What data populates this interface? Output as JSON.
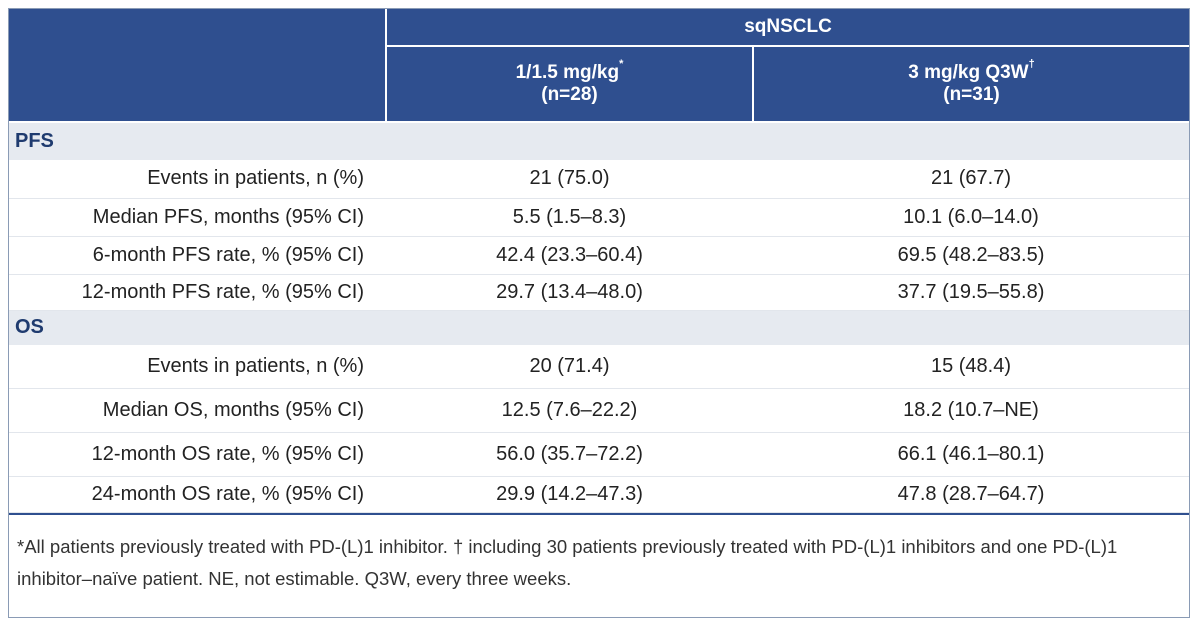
{
  "header": {
    "group": "sqNSCLC",
    "columns": [
      {
        "label": "1/1.5 mg/kg",
        "mark": "*",
        "n": "(n=28)"
      },
      {
        "label": "3 mg/kg Q3W",
        "mark": "†",
        "n": "(n=31)"
      }
    ]
  },
  "sections": [
    {
      "title": "PFS",
      "rows": [
        [
          "Events in patients, n (%)",
          "21 (75.0)",
          "21 (67.7)"
        ],
        [
          "Median PFS, months (95% CI)",
          "5.5 (1.5–8.3)",
          "10.1 (6.0–14.0)"
        ],
        [
          "6-month PFS rate, % (95% CI)",
          "42.4 (23.3–60.4)",
          "69.5 (48.2–83.5)"
        ],
        [
          "12-month PFS rate, % (95% CI)",
          "29.7 (13.4–48.0)",
          "37.7 (19.5–55.8)"
        ]
      ]
    },
    {
      "title": "OS",
      "rows": [
        [
          "Events in patients, n (%)",
          "20 (71.4)",
          "15 (48.4)"
        ],
        [
          "Median OS, months (95% CI)",
          "12.5 (7.6–22.2)",
          "18.2 (10.7–NE)"
        ],
        [
          "12-month OS rate, % (95% CI)",
          "56.0 (35.7–72.2)",
          "66.1 (46.1–80.1)"
        ],
        [
          "24-month OS rate, % (95% CI)",
          "29.9 (14.2–47.3)",
          "47.8 (28.7–64.7)"
        ]
      ]
    }
  ],
  "footnote": "*All patients previously treated with PD-(L)1 inhibitor. † including 30 patients previously treated with PD-(L)1 inhibitors and one PD-(L)1 inhibitor–naïve patient. NE, not estimable. Q3W, every three weeks."
}
